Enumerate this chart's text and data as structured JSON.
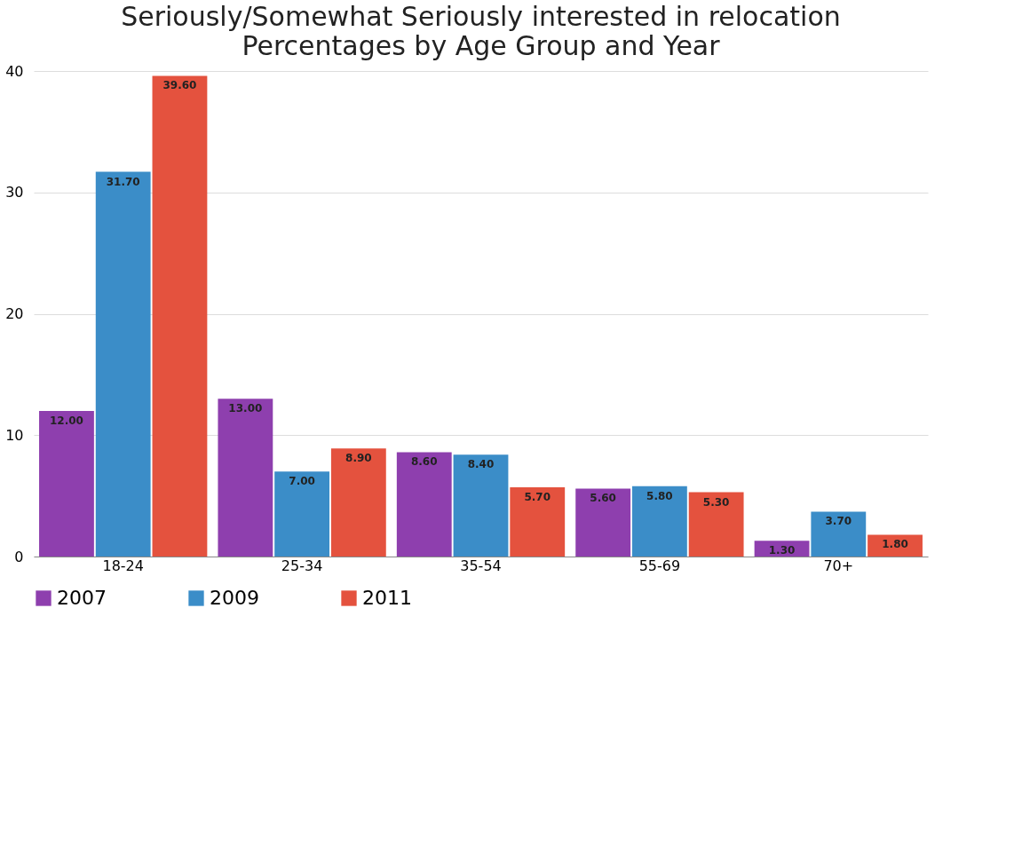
{
  "chart_data": {
    "type": "bar",
    "title": "Seriously/Somewhat Seriously interested in relocation",
    "subtitle": "Percentages by Age Group and Year",
    "categories": [
      "18-24",
      "25-34",
      "35-54",
      "55-69",
      "70+"
    ],
    "series": [
      {
        "name": "2007",
        "color": "#8e3fae",
        "values": [
          12.0,
          13.0,
          8.6,
          5.6,
          1.3
        ],
        "value_labels": [
          "12.00",
          "13.00",
          "8.60",
          "5.60",
          "1.30"
        ]
      },
      {
        "name": "2009",
        "color": "#3b8dc8",
        "values": [
          31.7,
          7.0,
          8.4,
          5.8,
          3.7
        ],
        "value_labels": [
          "31.70",
          "7.00",
          "8.40",
          "5.80",
          "3.70"
        ]
      },
      {
        "name": "2011",
        "color": "#e4523e",
        "values": [
          39.6,
          8.9,
          5.7,
          5.3,
          1.8
        ],
        "value_labels": [
          "39.60",
          "8.90",
          "5.70",
          "5.30",
          "1.80"
        ]
      }
    ],
    "ylim": [
      0,
      40
    ],
    "yticks": [
      0,
      10,
      20,
      30,
      40
    ],
    "grid": "y",
    "legend": "bottom"
  }
}
